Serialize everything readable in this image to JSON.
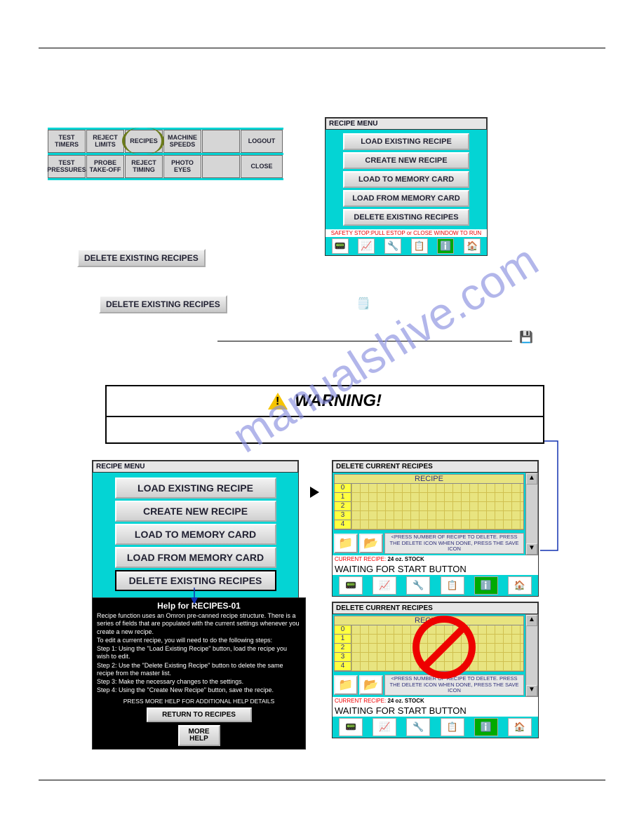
{
  "top_buttons": {
    "row1": [
      "TEST\nTIMERS",
      "REJECT\nLIMITS",
      "RECIPES",
      "MACHINE\nSPEEDS",
      "",
      "LOGOUT"
    ],
    "row2": [
      "TEST\nPRESSURES",
      "PROBE\nTAKE-OFF",
      "REJECT\nTIMING",
      "PHOTO\nEYES",
      "",
      "CLOSE"
    ]
  },
  "recipe_menu": {
    "title": "RECIPE MENU",
    "buttons": [
      "LOAD EXISTING RECIPE",
      "CREATE NEW RECIPE",
      "LOAD TO MEMORY CARD",
      "LOAD FROM MEMORY CARD",
      "DELETE EXISTING RECIPES"
    ],
    "safety": "SAFETY STOP:PULL ESTOP or CLOSE WINDOW TO RUN"
  },
  "mid_btn1": "DELETE EXISTING RECIPES",
  "mid_btn2": "DELETE EXISTING RECIPES",
  "warning": {
    "label": "WARNING!"
  },
  "delete_panel": {
    "title": "DELETE CURRENT RECIPES",
    "col_header": "RECIPE",
    "rows": [
      "0",
      "1",
      "2",
      "3",
      "4"
    ],
    "instr": "<PRESS NUMBER OF RECIPE TO DELETE. PRESS THE DELETE ICON WHEN DONE, PRESS THE SAVE ICON",
    "current_label": "CURRENT RECIPE:",
    "current_val": "24 oz. STOCK",
    "waiting": "WAITING FOR START BUTTON"
  },
  "help": {
    "title": "Help for RECIPES-01",
    "p1": "Recipe function uses an Omron pre-canned recipe structure. There is a series of fields that are populated with the current settings whenever you create a new recipe.",
    "p2": "To edit a current recipe, you will need to do the following steps:",
    "p3": "Step 1: Using the \"Load Existing Recipe\" button, load the recipe you wish to edit.",
    "p4": "Step 2: Use the \"Delete Existing Recipe\" button to delete the same recipe from the master list.",
    "p5": "Step 3: Make the necessary changes to the settings.",
    "p6": "Step 4: Using the \"Create New Recipe\" button, save the recipe.",
    "press": "PRESS MORE HELP FOR ADDITIONAL HELP DETAILS",
    "return_btn": "RETURN TO RECIPES",
    "more_btn": "MORE\nHELP"
  },
  "iconbar_glyphs": [
    "📟",
    "📈",
    "🔧",
    "📋",
    "ℹ️",
    "🏠"
  ]
}
